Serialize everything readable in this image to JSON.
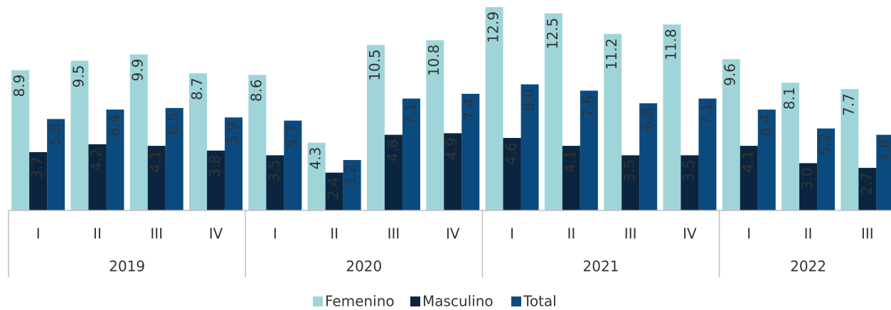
{
  "chart_data": {
    "type": "bar",
    "groups": [
      {
        "name": "2019",
        "categories": [
          "I",
          "II",
          "III",
          "IV"
        ]
      },
      {
        "name": "2020",
        "categories": [
          "I",
          "II",
          "III",
          "IV"
        ]
      },
      {
        "name": "2021",
        "categories": [
          "I",
          "II",
          "III",
          "IV"
        ]
      },
      {
        "name": "2022",
        "categories": [
          "I",
          "II",
          "III"
        ]
      }
    ],
    "series": [
      {
        "name": "Femenino",
        "color": "#9fd5d8",
        "values": [
          8.9,
          9.5,
          9.9,
          8.7,
          8.6,
          4.3,
          10.5,
          10.8,
          12.9,
          12.5,
          11.2,
          11.8,
          9.6,
          8.1,
          7.7
        ],
        "value_labels": [
          "8.9",
          "9.5",
          "9.9",
          "8.7",
          "8.6",
          "4.3",
          "10.5",
          "10.8",
          "12.9",
          "12.5",
          "11.2",
          "11.8",
          "9.6",
          "8.1",
          "7.7"
        ]
      },
      {
        "name": "Masculino",
        "color": "#0b2540",
        "values": [
          3.7,
          4.2,
          4.1,
          3.8,
          3.5,
          2.4,
          4.8,
          4.9,
          4.6,
          4.1,
          3.5,
          3.5,
          4.1,
          3.0,
          2.7
        ],
        "value_labels": [
          "3.7",
          "4.2",
          "4.1",
          "3.8",
          "3.5",
          "2.4",
          "4.8",
          "4.9",
          "4.6",
          "4.1",
          "3.5",
          "3.5",
          "4.1",
          "3.0",
          "2.7"
        ]
      },
      {
        "name": "Total",
        "color": "#0b4a7f",
        "values": [
          5.8,
          6.4,
          6.5,
          5.9,
          5.7,
          3.2,
          7.1,
          7.4,
          8.0,
          7.6,
          6.8,
          7.1,
          6.4,
          5.2,
          4.8
        ],
        "value_labels": [
          "5.8",
          "6.4",
          "6.5",
          "5.9",
          "5.7",
          "3.2",
          "7.1",
          "7.4",
          "8.0",
          "7.6",
          "6.8",
          "7.1",
          "6.4",
          "5.2",
          "4.8"
        ]
      }
    ]
  }
}
